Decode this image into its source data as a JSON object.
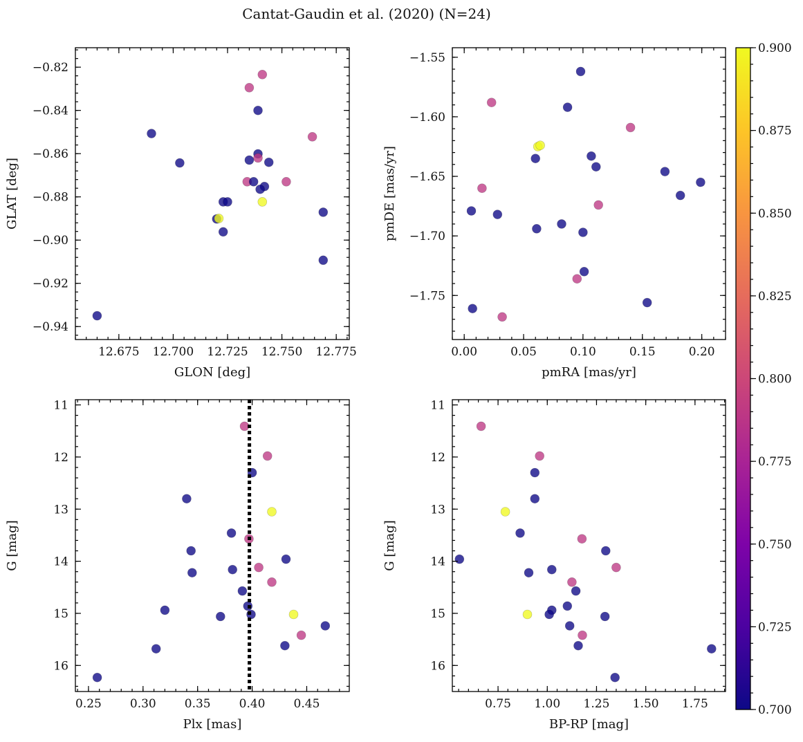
{
  "figure_title": "Cantat-Gaudin et al. (2020) (N=24)",
  "colorbar": {
    "vmin": 0.7,
    "vmax": 0.9,
    "ticks": [
      "0.700",
      "0.725",
      "0.750",
      "0.775",
      "0.800",
      "0.825",
      "0.850",
      "0.875",
      "0.900"
    ],
    "colormap": "plasma"
  },
  "chart_data": [
    {
      "type": "scatter",
      "id": "glon-glat",
      "xlabel": "GLON [deg]",
      "ylabel": "GLAT [deg]",
      "xlim": [
        12.655,
        12.781
      ],
      "ylim": [
        -0.946,
        -0.811
      ],
      "invert_y": false,
      "xticks": [
        "12.675",
        "12.700",
        "12.725",
        "12.750",
        "12.775"
      ],
      "yticks": [
        "-0.82",
        "-0.84",
        "-0.86",
        "-0.88",
        "-0.90",
        "-0.92",
        "-0.94"
      ],
      "points": [
        {
          "x": 12.741,
          "y": -0.8234,
          "c": 0.79
        },
        {
          "x": 12.735,
          "y": -0.8295,
          "c": 0.79
        },
        {
          "x": 12.739,
          "y": -0.84,
          "c": 0.7
        },
        {
          "x": 12.69,
          "y": -0.8507,
          "c": 0.7
        },
        {
          "x": 12.764,
          "y": -0.8522,
          "c": 0.79
        },
        {
          "x": 12.739,
          "y": -0.8601,
          "c": 0.7
        },
        {
          "x": 12.739,
          "y": -0.862,
          "c": 0.79
        },
        {
          "x": 12.735,
          "y": -0.863,
          "c": 0.7
        },
        {
          "x": 12.744,
          "y": -0.864,
          "c": 0.7
        },
        {
          "x": 12.703,
          "y": -0.8643,
          "c": 0.7
        },
        {
          "x": 12.734,
          "y": -0.873,
          "c": 0.79
        },
        {
          "x": 12.737,
          "y": -0.873,
          "c": 0.7
        },
        {
          "x": 12.752,
          "y": -0.873,
          "c": 0.79
        },
        {
          "x": 12.742,
          "y": -0.8752,
          "c": 0.7
        },
        {
          "x": 12.74,
          "y": -0.8765,
          "c": 0.7
        },
        {
          "x": 12.723,
          "y": -0.8823,
          "c": 0.7
        },
        {
          "x": 12.725,
          "y": -0.8823,
          "c": 0.7
        },
        {
          "x": 12.741,
          "y": -0.8823,
          "c": 0.9
        },
        {
          "x": 12.769,
          "y": -0.8871,
          "c": 0.7
        },
        {
          "x": 12.72,
          "y": -0.8902,
          "c": 0.7
        },
        {
          "x": 12.721,
          "y": -0.89,
          "c": 0.9
        },
        {
          "x": 12.723,
          "y": -0.8962,
          "c": 0.7
        },
        {
          "x": 12.769,
          "y": -0.9093,
          "c": 0.7
        },
        {
          "x": 12.665,
          "y": -0.935,
          "c": 0.7
        }
      ]
    },
    {
      "type": "scatter",
      "id": "pmra-pmde",
      "xlabel": "pmRA [mas/yr]",
      "ylabel": "pmDE [mas/yr]",
      "xlim": [
        -0.01,
        0.22
      ],
      "ylim": [
        -1.787,
        -1.542
      ],
      "invert_y": false,
      "xticks": [
        "0.00",
        "0.05",
        "0.10",
        "0.15",
        "0.20"
      ],
      "yticks": [
        "-1.55",
        "-1.60",
        "-1.65",
        "-1.70",
        "-1.75"
      ],
      "points": [
        {
          "x": 0.098,
          "y": -1.562,
          "c": 0.7
        },
        {
          "x": 0.023,
          "y": -1.588,
          "c": 0.79
        },
        {
          "x": 0.087,
          "y": -1.592,
          "c": 0.7
        },
        {
          "x": 0.14,
          "y": -1.609,
          "c": 0.79
        },
        {
          "x": 0.062,
          "y": -1.625,
          "c": 0.9
        },
        {
          "x": 0.064,
          "y": -1.624,
          "c": 0.9
        },
        {
          "x": 0.107,
          "y": -1.633,
          "c": 0.7
        },
        {
          "x": 0.06,
          "y": -1.635,
          "c": 0.7
        },
        {
          "x": 0.111,
          "y": -1.642,
          "c": 0.7
        },
        {
          "x": 0.169,
          "y": -1.646,
          "c": 0.7
        },
        {
          "x": 0.199,
          "y": -1.655,
          "c": 0.7
        },
        {
          "x": 0.015,
          "y": -1.66,
          "c": 0.79
        },
        {
          "x": 0.182,
          "y": -1.666,
          "c": 0.7
        },
        {
          "x": 0.113,
          "y": -1.674,
          "c": 0.79
        },
        {
          "x": 0.006,
          "y": -1.679,
          "c": 0.7
        },
        {
          "x": 0.028,
          "y": -1.682,
          "c": 0.7
        },
        {
          "x": 0.082,
          "y": -1.69,
          "c": 0.7
        },
        {
          "x": 0.061,
          "y": -1.694,
          "c": 0.7
        },
        {
          "x": 0.1,
          "y": -1.697,
          "c": 0.7
        },
        {
          "x": 0.101,
          "y": -1.73,
          "c": 0.7
        },
        {
          "x": 0.095,
          "y": -1.736,
          "c": 0.79
        },
        {
          "x": 0.154,
          "y": -1.756,
          "c": 0.7
        },
        {
          "x": 0.007,
          "y": -1.761,
          "c": 0.7
        },
        {
          "x": 0.032,
          "y": -1.768,
          "c": 0.79
        }
      ]
    },
    {
      "type": "scatter",
      "id": "plx-g",
      "xlabel": "Plx [mas]",
      "ylabel": "G [mag]",
      "xlim": [
        0.238,
        0.489
      ],
      "ylim": [
        10.9,
        16.5
      ],
      "invert_y": true,
      "xticks": [
        "0.25",
        "0.30",
        "0.35",
        "0.40",
        "0.45"
      ],
      "yticks": [
        "11",
        "12",
        "13",
        "14",
        "15",
        "16"
      ],
      "vline": {
        "x": 0.3975,
        "style": "dotted"
      },
      "points": [
        {
          "x": 0.393,
          "y": 11.41,
          "c": 0.79
        },
        {
          "x": 0.414,
          "y": 11.98,
          "c": 0.79
        },
        {
          "x": 0.4,
          "y": 12.3,
          "c": 0.7
        },
        {
          "x": 0.34,
          "y": 12.8,
          "c": 0.7
        },
        {
          "x": 0.418,
          "y": 13.05,
          "c": 0.9
        },
        {
          "x": 0.381,
          "y": 13.46,
          "c": 0.7
        },
        {
          "x": 0.397,
          "y": 13.57,
          "c": 0.79
        },
        {
          "x": 0.344,
          "y": 13.8,
          "c": 0.7
        },
        {
          "x": 0.431,
          "y": 13.96,
          "c": 0.7
        },
        {
          "x": 0.406,
          "y": 14.12,
          "c": 0.79
        },
        {
          "x": 0.382,
          "y": 14.16,
          "c": 0.7
        },
        {
          "x": 0.345,
          "y": 14.22,
          "c": 0.7
        },
        {
          "x": 0.418,
          "y": 14.4,
          "c": 0.79
        },
        {
          "x": 0.391,
          "y": 14.57,
          "c": 0.7
        },
        {
          "x": 0.396,
          "y": 14.86,
          "c": 0.7
        },
        {
          "x": 0.32,
          "y": 14.94,
          "c": 0.7
        },
        {
          "x": 0.399,
          "y": 15.02,
          "c": 0.7
        },
        {
          "x": 0.438,
          "y": 15.02,
          "c": 0.9
        },
        {
          "x": 0.371,
          "y": 15.06,
          "c": 0.7
        },
        {
          "x": 0.467,
          "y": 15.24,
          "c": 0.7
        },
        {
          "x": 0.445,
          "y": 15.42,
          "c": 0.79
        },
        {
          "x": 0.43,
          "y": 15.62,
          "c": 0.7
        },
        {
          "x": 0.312,
          "y": 15.68,
          "c": 0.7
        },
        {
          "x": 0.258,
          "y": 16.23,
          "c": 0.7
        }
      ]
    },
    {
      "type": "scatter",
      "id": "bprp-g",
      "xlabel": "BP-RP [mag]",
      "ylabel": "G [mag]",
      "xlim": [
        0.518,
        1.905
      ],
      "ylim": [
        10.9,
        16.5
      ],
      "invert_y": true,
      "xticks": [
        "0.75",
        "1.00",
        "1.25",
        "1.50",
        "1.75"
      ],
      "yticks": [
        "11",
        "12",
        "13",
        "14",
        "15",
        "16"
      ],
      "points": [
        {
          "x": 0.664,
          "y": 11.41,
          "c": 0.79
        },
        {
          "x": 0.961,
          "y": 11.98,
          "c": 0.79
        },
        {
          "x": 0.937,
          "y": 12.3,
          "c": 0.7
        },
        {
          "x": 0.937,
          "y": 12.8,
          "c": 0.7
        },
        {
          "x": 0.787,
          "y": 13.05,
          "c": 0.9
        },
        {
          "x": 0.862,
          "y": 13.46,
          "c": 0.7
        },
        {
          "x": 1.176,
          "y": 13.57,
          "c": 0.79
        },
        {
          "x": 1.297,
          "y": 13.8,
          "c": 0.7
        },
        {
          "x": 0.554,
          "y": 13.96,
          "c": 0.7
        },
        {
          "x": 1.35,
          "y": 14.12,
          "c": 0.79
        },
        {
          "x": 1.023,
          "y": 14.16,
          "c": 0.7
        },
        {
          "x": 0.906,
          "y": 14.22,
          "c": 0.7
        },
        {
          "x": 1.125,
          "y": 14.4,
          "c": 0.79
        },
        {
          "x": 1.145,
          "y": 14.57,
          "c": 0.7
        },
        {
          "x": 1.102,
          "y": 14.86,
          "c": 0.7
        },
        {
          "x": 1.023,
          "y": 14.94,
          "c": 0.7
        },
        {
          "x": 1.01,
          "y": 15.02,
          "c": 0.7
        },
        {
          "x": 0.899,
          "y": 15.02,
          "c": 0.9
        },
        {
          "x": 1.293,
          "y": 15.06,
          "c": 0.7
        },
        {
          "x": 1.114,
          "y": 15.24,
          "c": 0.7
        },
        {
          "x": 1.178,
          "y": 15.42,
          "c": 0.79
        },
        {
          "x": 1.157,
          "y": 15.62,
          "c": 0.7
        },
        {
          "x": 1.834,
          "y": 15.68,
          "c": 0.7
        },
        {
          "x": 1.344,
          "y": 16.23,
          "c": 0.7
        }
      ]
    }
  ]
}
